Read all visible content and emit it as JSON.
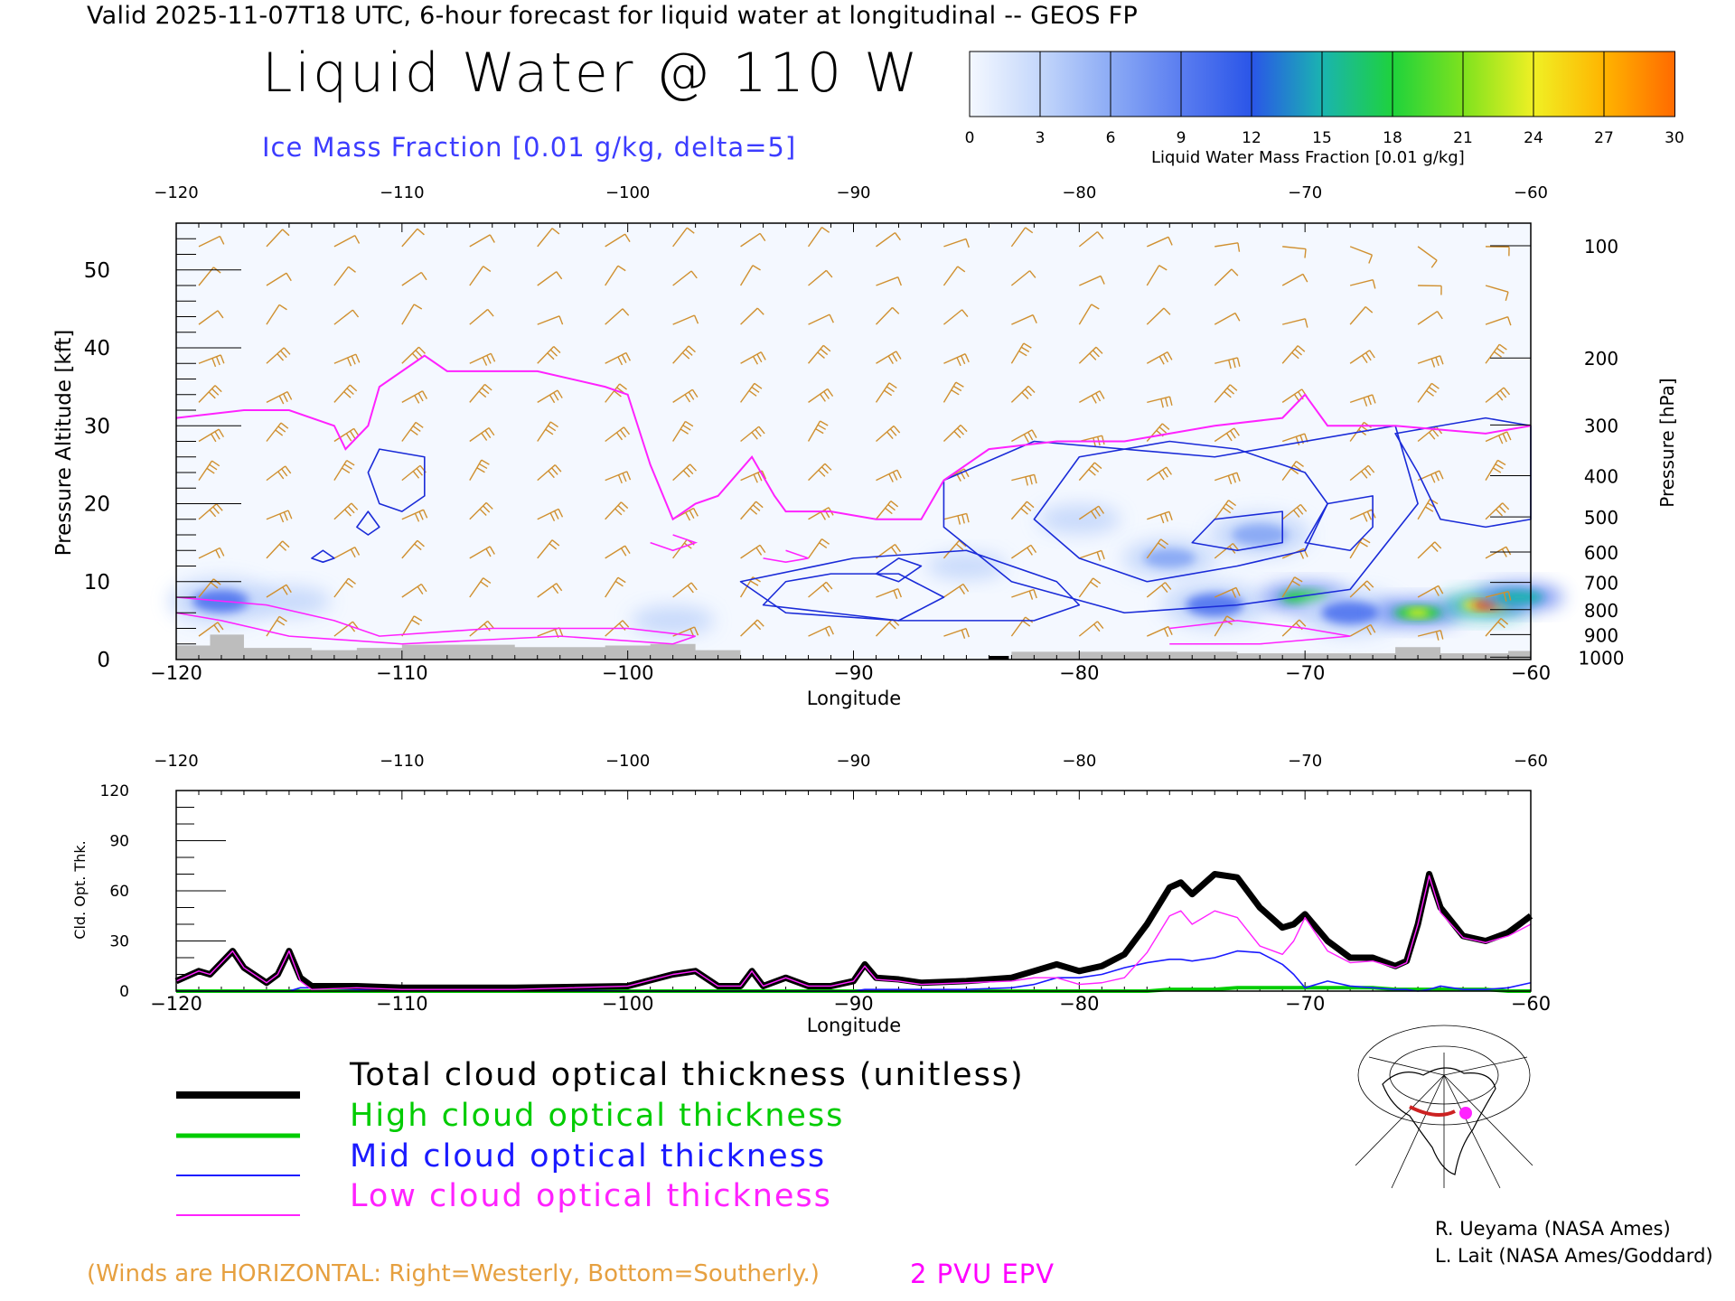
{
  "header": {
    "valid_line": "Valid 2025-11-07T18 UTC, 6-hour forecast for liquid water at longitudinal -- GEOS FP",
    "title": "Liquid Water @ 110 W",
    "ice_label": "Ice Mass Fraction [0.01 g/kg, delta=5]"
  },
  "colorbar": {
    "title": "Liquid Water Mass Fraction [0.01 g/kg]",
    "ticks": [
      "0",
      "3",
      "6",
      "9",
      "12",
      "15",
      "18",
      "21",
      "24",
      "27",
      "30"
    ],
    "colors": [
      "#f4f8ff",
      "#c4d7fb",
      "#8cabf5",
      "#5a7df0",
      "#2a55e8",
      "#1ab4b0",
      "#1ed23c",
      "#7ee21e",
      "#f0f024",
      "#ffb400",
      "#ff6a00",
      "#ff1e00"
    ]
  },
  "chart_data": [
    {
      "type": "heatmap",
      "xlabel": "Longitude",
      "ylabel": "Pressure Altitude [kft]",
      "ylabel_right": "Pressure [hPa]",
      "x_ticks": [
        "-120",
        "-110",
        "-100",
        "-90",
        "-80",
        "-70",
        "-60"
      ],
      "top_ticks": [
        "-120",
        "-110",
        "-100",
        "-90",
        "-80",
        "-70",
        "-60"
      ],
      "y_ticks": [
        "0",
        "10",
        "20",
        "30",
        "40",
        "50"
      ],
      "xlim": [
        -120,
        -60
      ],
      "ylim": [
        0,
        56
      ],
      "pressure_ticks": [
        {
          "label": "100",
          "kft": 53.1
        },
        {
          "label": "200",
          "kft": 38.7
        },
        {
          "label": "300",
          "kft": 30.1
        },
        {
          "label": "400",
          "kft": 23.6
        },
        {
          "label": "500",
          "kft": 18.3
        },
        {
          "label": "600",
          "kft": 13.8
        },
        {
          "label": "700",
          "kft": 9.9
        },
        {
          "label": "800",
          "kft": 6.4
        },
        {
          "label": "900",
          "kft": 3.2
        },
        {
          "label": "1000",
          "kft": 0.3
        }
      ],
      "pvu_2_epv_line": [
        {
          "lon": -120,
          "kft": 31
        },
        {
          "lon": -117,
          "kft": 32
        },
        {
          "lon": -115,
          "kft": 32
        },
        {
          "lon": -113,
          "kft": 30
        },
        {
          "lon": -112.5,
          "kft": 27
        },
        {
          "lon": -111.5,
          "kft": 30
        },
        {
          "lon": -111,
          "kft": 35
        },
        {
          "lon": -109,
          "kft": 39
        },
        {
          "lon": -108,
          "kft": 37
        },
        {
          "lon": -106,
          "kft": 37
        },
        {
          "lon": -104,
          "kft": 37
        },
        {
          "lon": -101,
          "kft": 35
        },
        {
          "lon": -100,
          "kft": 34
        },
        {
          "lon": -99,
          "kft": 25
        },
        {
          "lon": -98,
          "kft": 18
        },
        {
          "lon": -97,
          "kft": 20
        },
        {
          "lon": -96,
          "kft": 21
        },
        {
          "lon": -94.5,
          "kft": 26
        },
        {
          "lon": -93.5,
          "kft": 21
        },
        {
          "lon": -93,
          "kft": 19
        },
        {
          "lon": -91,
          "kft": 19
        },
        {
          "lon": -89,
          "kft": 18
        },
        {
          "lon": -87,
          "kft": 18
        },
        {
          "lon": -86,
          "kft": 23
        },
        {
          "lon": -84,
          "kft": 27
        },
        {
          "lon": -81,
          "kft": 28
        },
        {
          "lon": -78,
          "kft": 28
        },
        {
          "lon": -76,
          "kft": 29
        },
        {
          "lon": -74,
          "kft": 30
        },
        {
          "lon": -71,
          "kft": 31
        },
        {
          "lon": -70,
          "kft": 34
        },
        {
          "lon": -69,
          "kft": 30
        },
        {
          "lon": -66,
          "kft": 30
        },
        {
          "lon": -62,
          "kft": 29
        },
        {
          "lon": -60,
          "kft": 30
        }
      ],
      "liquid_water_blobs": [
        {
          "lon": -118,
          "kft": 7.5,
          "value": 9
        },
        {
          "lon": -115,
          "kft": 7.5,
          "value": 3
        },
        {
          "lon": -98,
          "kft": 5,
          "value": 3
        },
        {
          "lon": -85,
          "kft": 12,
          "value": 2
        },
        {
          "lon": -80,
          "kft": 18,
          "value": 3
        },
        {
          "lon": -76,
          "kft": 13,
          "value": 6
        },
        {
          "lon": -74,
          "kft": 7,
          "value": 9
        },
        {
          "lon": -72,
          "kft": 16,
          "value": 8
        },
        {
          "lon": -70,
          "kft": 8,
          "value": 17
        },
        {
          "lon": -68,
          "kft": 6,
          "value": 9
        },
        {
          "lon": -65,
          "kft": 6,
          "value": 18
        },
        {
          "lon": -62,
          "kft": 7,
          "value": 24
        },
        {
          "lon": -60.5,
          "kft": 8,
          "value": 15
        }
      ]
    },
    {
      "type": "line",
      "xlabel": "Longitude",
      "ylabel": "Cld. Opt. Thk.",
      "x_ticks": [
        "-120",
        "-110",
        "-100",
        "-90",
        "-80",
        "-70",
        "-60"
      ],
      "top_ticks": [
        "-120",
        "-110",
        "-100",
        "-90",
        "-80",
        "-70",
        "-60"
      ],
      "y_ticks": [
        "0",
        "30",
        "60",
        "90",
        "120"
      ],
      "xlim": [
        -120,
        -60
      ],
      "ylim": [
        0,
        120
      ],
      "x": [
        -120,
        -119,
        -118.5,
        -117.5,
        -117,
        -116,
        -115.5,
        -115,
        -114.5,
        -114,
        -112,
        -110,
        -105,
        -100,
        -98,
        -97,
        -96,
        -95,
        -94.5,
        -94,
        -93,
        -92,
        -91,
        -90,
        -89.5,
        -89,
        -88,
        -87,
        -85,
        -83,
        -82,
        -81,
        -80,
        -79,
        -78,
        -77,
        -76,
        -75.5,
        -75,
        -74,
        -73,
        -72,
        -71,
        -70.5,
        -70,
        -69,
        -68,
        -67,
        -66,
        -65.5,
        -65,
        -64.5,
        -64,
        -63,
        -62,
        -61,
        -60
      ],
      "series": [
        {
          "name": "Total cloud optical thickness (unitless)",
          "color": "#000000",
          "values": [
            6,
            12,
            10,
            24,
            14,
            5,
            10,
            24,
            8,
            3,
            3,
            2,
            2,
            3,
            10,
            12,
            3,
            3,
            12,
            3,
            8,
            3,
            3,
            6,
            16,
            8,
            7,
            5,
            6,
            8,
            12,
            16,
            12,
            15,
            22,
            40,
            62,
            65,
            58,
            70,
            68,
            50,
            38,
            40,
            46,
            30,
            20,
            20,
            15,
            18,
            40,
            70,
            50,
            33,
            30,
            35,
            45
          ]
        },
        {
          "name": "High cloud optical thickness",
          "color": "#00cc00",
          "values": [
            0,
            0,
            0,
            0,
            0,
            0,
            0,
            0,
            0,
            0,
            0,
            0,
            0,
            0,
            0,
            0,
            0,
            0,
            0,
            0,
            0,
            0,
            0,
            0,
            0,
            0,
            0,
            0,
            0,
            0,
            0,
            0,
            0,
            0,
            0,
            0,
            1,
            1,
            1,
            1,
            2,
            2,
            2,
            2,
            2,
            2,
            2,
            2,
            1,
            1,
            1,
            1,
            1,
            1,
            1,
            0,
            0
          ]
        },
        {
          "name": "Mid cloud optical thickness",
          "color": "#1a1aff",
          "values": [
            0,
            0,
            0,
            0,
            0,
            0,
            0,
            0,
            2,
            2,
            1,
            1,
            1,
            0,
            0,
            0,
            0,
            0,
            0,
            0,
            0,
            0,
            0,
            0,
            1,
            1,
            1,
            1,
            1,
            2,
            4,
            8,
            8,
            10,
            14,
            17,
            19,
            19,
            18,
            20,
            24,
            23,
            16,
            10,
            2,
            6,
            3,
            2,
            1,
            1,
            0,
            1,
            3,
            1,
            1,
            2,
            5
          ]
        },
        {
          "name": "Low cloud optical thickness",
          "color": "#ff22ff",
          "values": [
            6,
            12,
            10,
            24,
            14,
            5,
            10,
            24,
            6,
            1,
            2,
            1,
            1,
            3,
            10,
            12,
            3,
            3,
            12,
            3,
            8,
            3,
            3,
            6,
            15,
            7,
            6,
            4,
            5,
            6,
            8,
            8,
            4,
            5,
            8,
            23,
            45,
            48,
            40,
            48,
            44,
            27,
            22,
            30,
            44,
            24,
            17,
            18,
            14,
            17,
            40,
            69,
            47,
            32,
            29,
            33,
            40
          ]
        }
      ]
    }
  ],
  "legend": {
    "total": "Total cloud optical thickness (unitless)",
    "high": "High cloud optical thickness",
    "mid": "Mid cloud optical thickness",
    "low": "Low cloud optical thickness"
  },
  "footer": {
    "winds_note": "(Winds are HORIZONTAL: Right=Westerly, Bottom=Southerly.)",
    "pvu_label": "2 PVU EPV",
    "credit_1": "R. Ueyama (NASA Ames)",
    "credit_2": "L. Lait (NASA Ames/Goddard)"
  }
}
